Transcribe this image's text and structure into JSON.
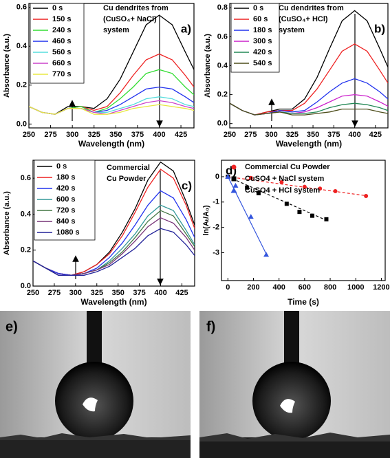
{
  "chart_data": [
    {
      "type": "line",
      "panel_label": "a)",
      "xlabel": "Wavelength (nm)",
      "ylabel": "Absorbance (a.u.)",
      "annotation": [
        "Cu dendrites from",
        "(CuSO₄+ NaCl)",
        "system"
      ],
      "legend": "upper left",
      "xlim": [
        250,
        440
      ],
      "ylim": [
        -0.02,
        0.62
      ],
      "xticks": [
        250,
        275,
        300,
        325,
        350,
        375,
        400,
        425
      ],
      "yticks": [
        {
          "value": 0,
          "label": "0.0"
        },
        0.2,
        0.4,
        0.6
      ],
      "x": [
        250,
        265,
        280,
        295,
        310,
        325,
        340,
        355,
        370,
        385,
        400,
        415,
        430,
        440
      ],
      "series": [
        {
          "name": "0 s",
          "color": "#000000",
          "values": [
            0.09,
            0.06,
            0.05,
            0.09,
            0.09,
            0.08,
            0.13,
            0.23,
            0.37,
            0.51,
            0.56,
            0.51,
            0.37,
            0.28
          ]
        },
        {
          "name": "150 s",
          "color": "#ee2222",
          "values": [
            0.09,
            0.06,
            0.05,
            0.08,
            0.09,
            0.07,
            0.09,
            0.16,
            0.25,
            0.33,
            0.36,
            0.33,
            0.25,
            0.19
          ]
        },
        {
          "name": "240 s",
          "color": "#33dd33",
          "values": [
            0.09,
            0.06,
            0.05,
            0.08,
            0.09,
            0.06,
            0.08,
            0.13,
            0.19,
            0.26,
            0.28,
            0.26,
            0.19,
            0.15
          ]
        },
        {
          "name": "460 s",
          "color": "#2233ee",
          "values": [
            0.09,
            0.06,
            0.05,
            0.08,
            0.08,
            0.06,
            0.07,
            0.1,
            0.14,
            0.18,
            0.19,
            0.18,
            0.14,
            0.11
          ]
        },
        {
          "name": "560 s",
          "color": "#55dddd",
          "values": [
            0.09,
            0.06,
            0.05,
            0.08,
            0.08,
            0.06,
            0.06,
            0.08,
            0.1,
            0.13,
            0.14,
            0.13,
            0.1,
            0.09
          ]
        },
        {
          "name": "660 s",
          "color": "#cc44cc",
          "values": [
            0.09,
            0.06,
            0.05,
            0.08,
            0.08,
            0.06,
            0.05,
            0.07,
            0.09,
            0.11,
            0.12,
            0.11,
            0.09,
            0.08
          ]
        },
        {
          "name": "770 s",
          "color": "#e8e840",
          "values": [
            0.09,
            0.06,
            0.05,
            0.08,
            0.08,
            0.05,
            0.05,
            0.06,
            0.08,
            0.09,
            0.1,
            0.09,
            0.08,
            0.07
          ]
        }
      ]
    },
    {
      "type": "line",
      "panel_label": "b)",
      "xlabel": "Wavelength (nm)",
      "ylabel": "Absorbance (a.u.)",
      "annotation": [
        "Cu dendrites from",
        "(CuSO₄+ HCl)",
        "system"
      ],
      "legend": "upper left",
      "xlim": [
        250,
        440
      ],
      "ylim": [
        -0.03,
        0.83
      ],
      "xticks": [
        250,
        275,
        300,
        325,
        350,
        375,
        400,
        425
      ],
      "yticks": [
        {
          "value": 0,
          "label": "0.0"
        },
        0.2,
        0.4,
        0.6,
        0.8
      ],
      "x": [
        250,
        265,
        280,
        295,
        310,
        325,
        340,
        355,
        370,
        385,
        400,
        415,
        430,
        440
      ],
      "series": [
        {
          "name": "0 s",
          "color": "#000000",
          "values": [
            0.14,
            0.09,
            0.06,
            0.08,
            0.1,
            0.1,
            0.17,
            0.32,
            0.52,
            0.71,
            0.78,
            0.71,
            0.52,
            0.39
          ]
        },
        {
          "name": "60 s",
          "color": "#ee2222",
          "values": [
            0.14,
            0.09,
            0.06,
            0.08,
            0.09,
            0.09,
            0.14,
            0.24,
            0.37,
            0.5,
            0.55,
            0.5,
            0.37,
            0.28
          ]
        },
        {
          "name": "180 s",
          "color": "#2233ee",
          "values": [
            0.14,
            0.09,
            0.06,
            0.07,
            0.09,
            0.08,
            0.09,
            0.15,
            0.22,
            0.28,
            0.31,
            0.28,
            0.22,
            0.17
          ]
        },
        {
          "name": "300 s",
          "color": "#cc22cc",
          "values": [
            0.14,
            0.09,
            0.06,
            0.07,
            0.08,
            0.07,
            0.08,
            0.11,
            0.15,
            0.19,
            0.2,
            0.19,
            0.15,
            0.12
          ]
        },
        {
          "name": "420 s",
          "color": "#228855",
          "values": [
            0.14,
            0.09,
            0.06,
            0.07,
            0.08,
            0.07,
            0.07,
            0.08,
            0.11,
            0.13,
            0.14,
            0.13,
            0.11,
            0.09
          ]
        },
        {
          "name": "540 s",
          "color": "#4d4d1a",
          "values": [
            0.14,
            0.09,
            0.06,
            0.07,
            0.08,
            0.06,
            0.06,
            0.07,
            0.08,
            0.1,
            0.1,
            0.1,
            0.08,
            0.07
          ]
        }
      ]
    },
    {
      "type": "line",
      "panel_label": "c)",
      "xlabel": "Wavelength (nm)",
      "ylabel": "Absorbance (a.u.)",
      "annotation": [
        "Commercial",
        "Cu Powder"
      ],
      "legend": "upper left",
      "xlim": [
        250,
        440
      ],
      "ylim": [
        0,
        0.7
      ],
      "xticks": [
        250,
        275,
        300,
        325,
        350,
        375,
        400,
        425
      ],
      "yticks": [
        {
          "value": 0,
          "label": "0.0"
        },
        0.2,
        0.4,
        0.6
      ],
      "x": [
        250,
        265,
        280,
        295,
        310,
        325,
        340,
        355,
        370,
        385,
        400,
        415,
        430,
        440
      ],
      "series": [
        {
          "name": "0 s",
          "color": "#000000",
          "values": [
            0.14,
            0.1,
            0.07,
            0.06,
            0.08,
            0.12,
            0.19,
            0.3,
            0.43,
            0.59,
            0.69,
            0.64,
            0.47,
            0.34
          ]
        },
        {
          "name": "180 s",
          "color": "#ee2222",
          "values": [
            0.14,
            0.1,
            0.07,
            0.06,
            0.08,
            0.12,
            0.18,
            0.28,
            0.41,
            0.55,
            0.65,
            0.6,
            0.45,
            0.32
          ]
        },
        {
          "name": "420 s",
          "color": "#2233ee",
          "values": [
            0.14,
            0.1,
            0.07,
            0.06,
            0.07,
            0.1,
            0.16,
            0.24,
            0.34,
            0.45,
            0.53,
            0.49,
            0.37,
            0.27
          ]
        },
        {
          "name": "600 s",
          "color": "#339999",
          "values": [
            0.14,
            0.1,
            0.06,
            0.06,
            0.07,
            0.09,
            0.14,
            0.21,
            0.29,
            0.39,
            0.45,
            0.42,
            0.31,
            0.23
          ]
        },
        {
          "name": "720 s",
          "color": "#447744",
          "values": [
            0.14,
            0.1,
            0.06,
            0.06,
            0.07,
            0.09,
            0.13,
            0.19,
            0.27,
            0.36,
            0.42,
            0.39,
            0.29,
            0.22
          ]
        },
        {
          "name": "840 s",
          "color": "#773377",
          "values": [
            0.14,
            0.1,
            0.06,
            0.06,
            0.07,
            0.09,
            0.12,
            0.18,
            0.25,
            0.33,
            0.38,
            0.35,
            0.27,
            0.2
          ]
        },
        {
          "name": "1080 s",
          "color": "#222299",
          "values": [
            0.14,
            0.1,
            0.06,
            0.06,
            0.06,
            0.08,
            0.11,
            0.16,
            0.21,
            0.28,
            0.32,
            0.3,
            0.23,
            0.17
          ]
        }
      ]
    },
    {
      "type": "scatter",
      "panel_label": "d)",
      "xlabel": "Time (s)",
      "ylabel": "ln(Aₜ/A₀)",
      "legend": "upper right",
      "xlim": [
        -50,
        1230
      ],
      "ylim": [
        -4.1,
        0.65
      ],
      "xticks": [
        0,
        200,
        400,
        600,
        800,
        1000,
        1200
      ],
      "yticks": [
        -3,
        -2,
        -1,
        0
      ],
      "series": [
        {
          "name": "Commercial Cu Powder",
          "color": "#ee2222",
          "marker": "circle",
          "x": [
            0,
            180,
            420,
            600,
            720,
            840,
            1080
          ],
          "values": [
            0,
            -0.05,
            -0.22,
            -0.4,
            -0.47,
            -0.57,
            -0.76
          ],
          "fit_x": [
            0,
            1080
          ],
          "fit_y": [
            0,
            -0.75
          ],
          "fit_dash": true
        },
        {
          "name": "CuSO4 + NaCl system",
          "color": "#000000",
          "marker": "square",
          "x": [
            0,
            150,
            240,
            460,
            560,
            660,
            770
          ],
          "values": [
            0,
            -0.43,
            -0.65,
            -1.07,
            -1.39,
            -1.54,
            -1.68
          ],
          "fit_x": [
            0,
            770
          ],
          "fit_y": [
            0,
            -1.72
          ],
          "fit_dash": true
        },
        {
          "name": "CuSO4 + HCl system",
          "color": "#3355dd",
          "marker": "triangle",
          "x": [
            0,
            60,
            180,
            300
          ],
          "values": [
            0,
            -0.35,
            -1.58,
            -3.08
          ],
          "fit_x": [
            0,
            300
          ],
          "fit_y": [
            0,
            -3.05
          ],
          "fit_dash": false
        }
      ]
    }
  ],
  "photos": [
    {
      "label": "e)"
    },
    {
      "label": "f)"
    }
  ]
}
